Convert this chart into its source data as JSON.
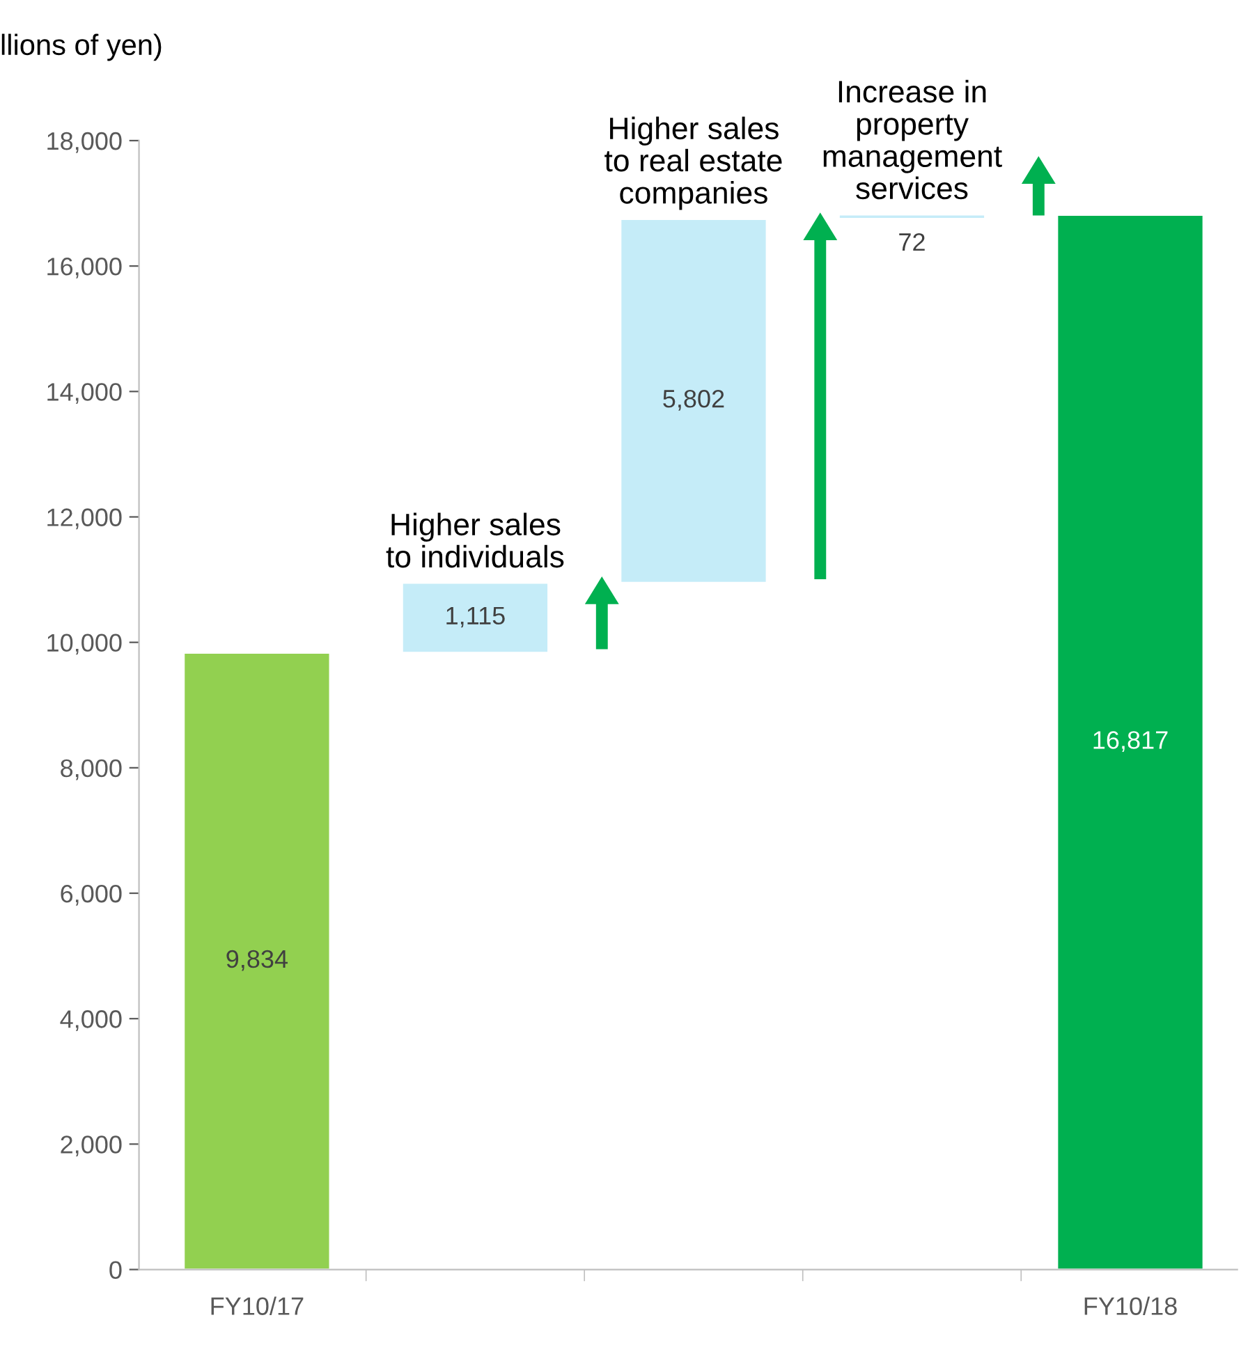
{
  "chart_data": {
    "type": "bar",
    "ylabel": "llions of yen)",
    "categories": [
      "FY10/17",
      null,
      null,
      null,
      "FY10/18"
    ],
    "values": [
      9834,
      1115,
      5802,
      72,
      16817
    ],
    "base": [
      0,
      9834,
      10949,
      16751,
      0
    ],
    "colors": [
      "#92d050",
      "#c5ecf8",
      "#c5ecf8",
      "#c5ecf8",
      "#00b050"
    ],
    "value_labels": [
      "9,834",
      "1,115",
      "5,802",
      "72",
      "16,817"
    ],
    "annotations": [
      {
        "text": "Higher sales\nto individuals",
        "y": 10949
      },
      {
        "text": "Higher sales\nto real estate\ncompanies",
        "y": 16751
      },
      {
        "text": "Increase in\nproperty\nmanagement\nservices",
        "y": 16823
      }
    ],
    "ylim": [
      0,
      18000
    ],
    "yticks": [
      {
        "value": 0,
        "label": "0"
      },
      {
        "value": 2000,
        "label": "2,000"
      },
      {
        "value": 4000,
        "label": "4,000"
      },
      {
        "value": 6000,
        "label": "6,000"
      },
      {
        "value": 8000,
        "label": "8,000"
      },
      {
        "value": 10000,
        "label": "10,000"
      },
      {
        "value": 12000,
        "label": "12,000"
      },
      {
        "value": 14000,
        "label": "14,000"
      },
      {
        "value": 16000,
        "label": "16,000"
      },
      {
        "value": 18000,
        "label": "18,000"
      }
    ],
    "grid": false,
    "legend": false
  }
}
